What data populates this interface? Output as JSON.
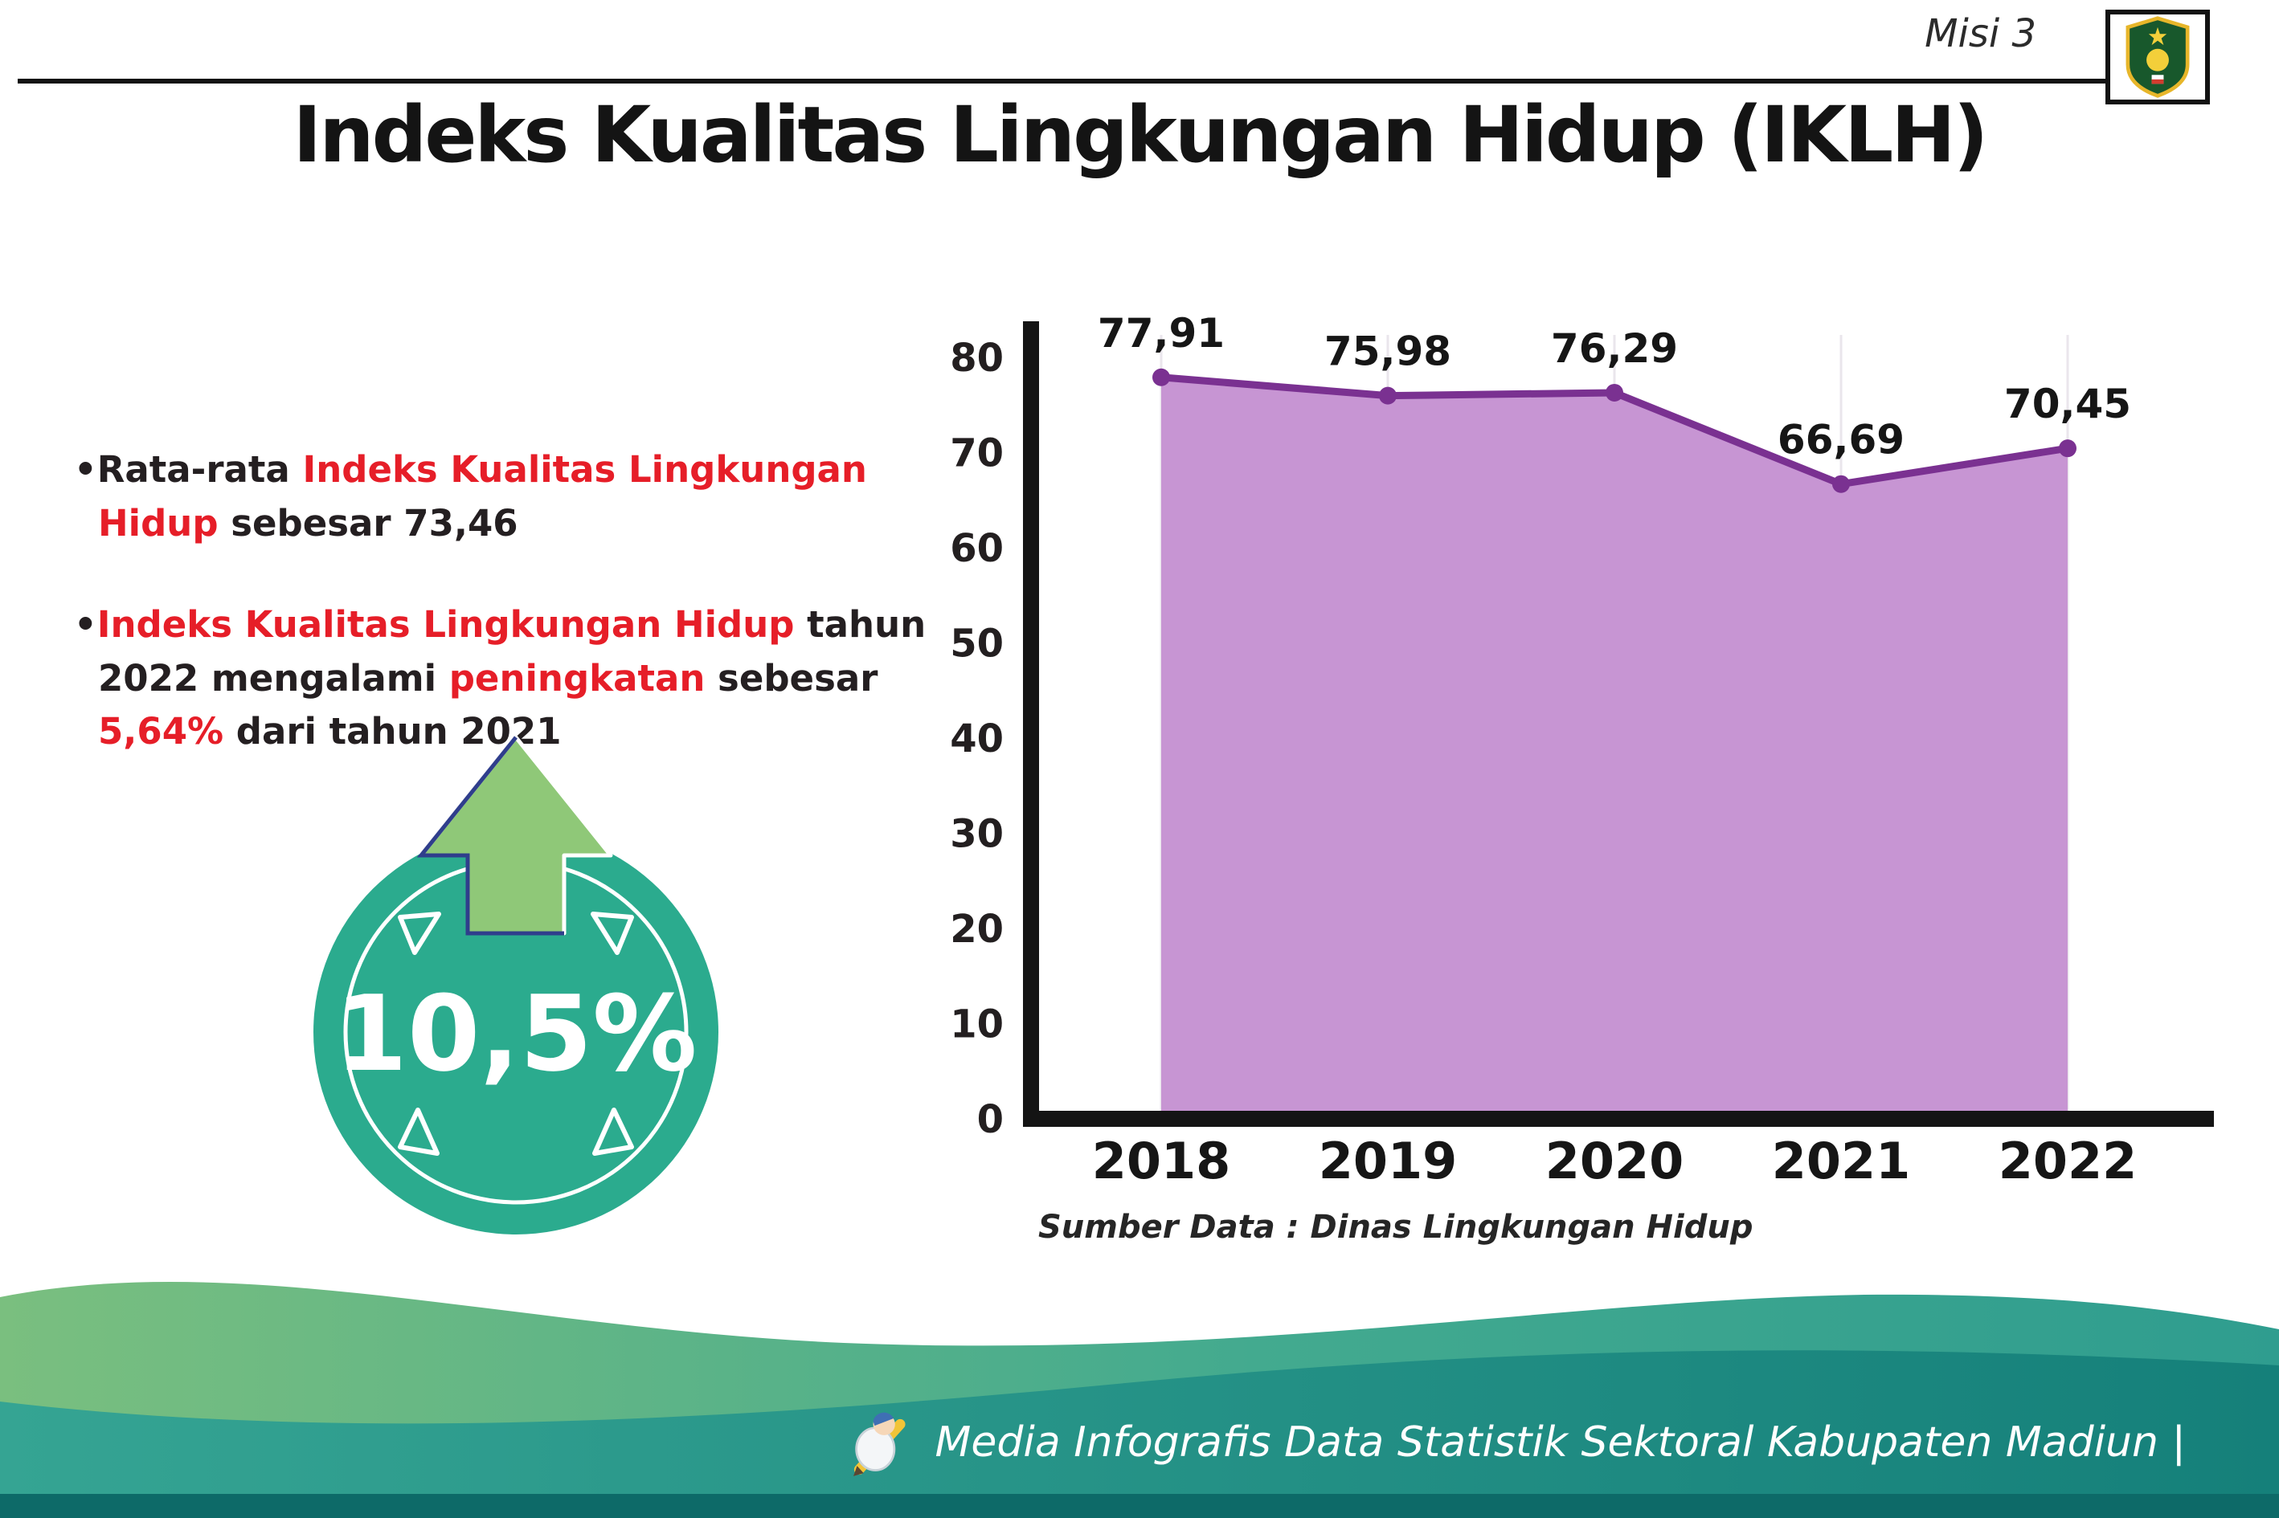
{
  "header": {
    "misi": "Misi 3",
    "title": "Indeks Kualitas Lingkungan Hidup (IKLH)"
  },
  "bullets": {
    "b1": {
      "marker": "•",
      "p1": "Rata-rata ",
      "p2": "Indeks Kualitas Lingkungan Hidup",
      "p3": " sebesar 73,46"
    },
    "b2": {
      "marker": "•",
      "p1": "Indeks Kualitas Lingkungan Hidup",
      "p2": " tahun 2022 mengalami ",
      "p3": "peningkatan",
      "p4": " sebesar ",
      "p5": "5,64%",
      "p6": " dari tahun 2021"
    }
  },
  "badge": {
    "value": "10,5%"
  },
  "chart_data": {
    "type": "area",
    "categories": [
      "2018",
      "2019",
      "2020",
      "2021",
      "2022"
    ],
    "values": [
      77.91,
      75.98,
      76.29,
      66.69,
      70.45
    ],
    "value_labels": [
      "77,91",
      "75,98",
      "76,29",
      "66,69",
      "70,45"
    ],
    "title": "",
    "xlabel": "",
    "ylabel": "",
    "ylim": [
      0,
      80
    ],
    "yticks": [
      0,
      10,
      20,
      30,
      40,
      50,
      60,
      70,
      80
    ],
    "grid": "vertical-light",
    "legend": "none",
    "line_color": "#7a3191",
    "fill_color": "#c795d3",
    "source": "Sumber Data : Dinas Lingkungan Hidup"
  },
  "footer": {
    "credit": "Media Infografis Data Statistik Sektoral Kabupaten Madiun |"
  },
  "icons": {
    "logo": "kabupaten-madiun-crest",
    "mascot": "writer-mascot",
    "arrow": "up-arrow"
  },
  "colors": {
    "accent_red": "#e61e28",
    "badge_teal": "#2bab8e",
    "arrow_green": "#8fc878",
    "footer_teal": "#2f9d8f"
  }
}
